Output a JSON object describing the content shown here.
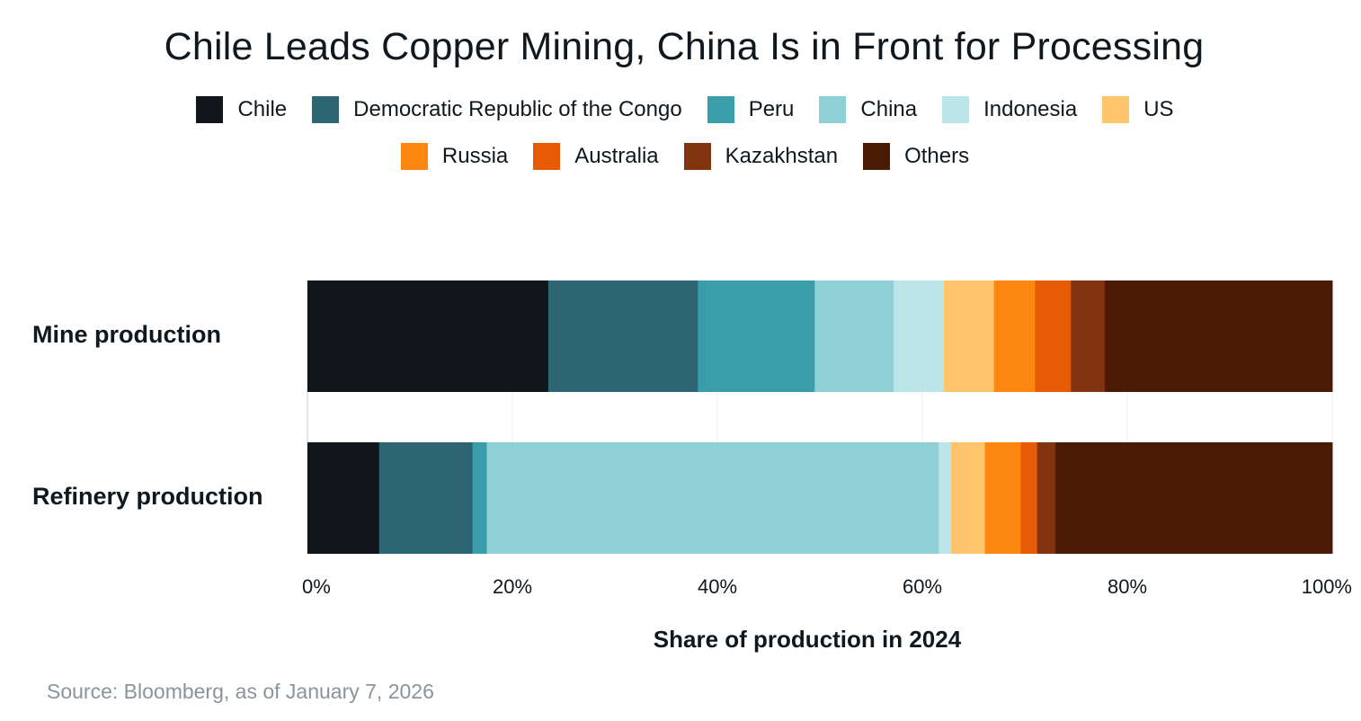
{
  "chart_data": {
    "type": "bar",
    "orientation": "horizontal",
    "stacked": true,
    "title": "Chile Leads Copper Mining, China Is in Front for Processing",
    "xlabel": "Share of production in 2024",
    "ylabel": "",
    "categories": [
      "Mine production",
      "Refinery production"
    ],
    "xlim": [
      0,
      100
    ],
    "xticks": [
      "0%",
      "20%",
      "40%",
      "60%",
      "80%",
      "100%"
    ],
    "grid": true,
    "legend_position": "top",
    "series": [
      {
        "name": "Chile",
        "color": "#0f171d",
        "values": [
          23.5,
          7.0
        ]
      },
      {
        "name": "Democratic Republic of the Congo",
        "color": "#2d6572",
        "values": [
          14.6,
          9.1
        ]
      },
      {
        "name": "Peru",
        "color": "#3a9daa",
        "values": [
          11.4,
          1.4
        ]
      },
      {
        "name": "China",
        "color": "#8dd1d7",
        "values": [
          7.7,
          44.1
        ]
      },
      {
        "name": "Indonesia",
        "color": "#bce5e8",
        "values": [
          4.9,
          1.2
        ]
      },
      {
        "name": "US",
        "color": "#fec56c",
        "values": [
          4.9,
          3.3
        ]
      },
      {
        "name": "Russia",
        "color": "#fe8712",
        "values": [
          4.0,
          3.5
        ]
      },
      {
        "name": "Australia",
        "color": "#e65b04",
        "values": [
          3.5,
          1.6
        ]
      },
      {
        "name": "Kazakhstan",
        "color": "#823310",
        "values": [
          3.3,
          1.8
        ]
      },
      {
        "name": "Others",
        "color": "#4a1a05",
        "values": [
          22.2,
          27.0
        ]
      }
    ]
  },
  "source": "Source: Bloomberg, as of January 7, 2026"
}
